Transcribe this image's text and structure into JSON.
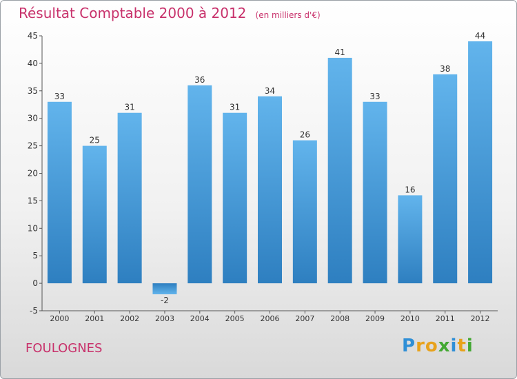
{
  "title": "Résultat Comptable 2000 à 2012",
  "unit_note": "(en milliers d'€)",
  "commune": "FOULOGNES",
  "logo": {
    "letters": [
      "P",
      "r",
      "o",
      "x",
      "i",
      "t",
      "i"
    ],
    "colors": [
      "#2f8fd6",
      "#e8a21b",
      "#e8a21b",
      "#43a832",
      "#2f8fd6",
      "#e8a21b",
      "#43a832"
    ]
  },
  "colors": {
    "title": "#c8316b",
    "bar_top": "#62b4ec",
    "bar_bottom": "#2e7fc0",
    "axis": "#555555"
  },
  "chart_data": {
    "type": "bar",
    "categories": [
      "2000",
      "2001",
      "2002",
      "2003",
      "2004",
      "2005",
      "2006",
      "2007",
      "2008",
      "2009",
      "2010",
      "2011",
      "2012"
    ],
    "values": [
      33,
      25,
      31,
      -2,
      36,
      31,
      34,
      26,
      41,
      33,
      16,
      38,
      44
    ],
    "ylim": [
      -5,
      45
    ],
    "yticks": [
      -5,
      0,
      5,
      10,
      15,
      20,
      25,
      30,
      35,
      40,
      45
    ],
    "xlabel": "",
    "ylabel": "",
    "grid": false,
    "legend": "none"
  }
}
